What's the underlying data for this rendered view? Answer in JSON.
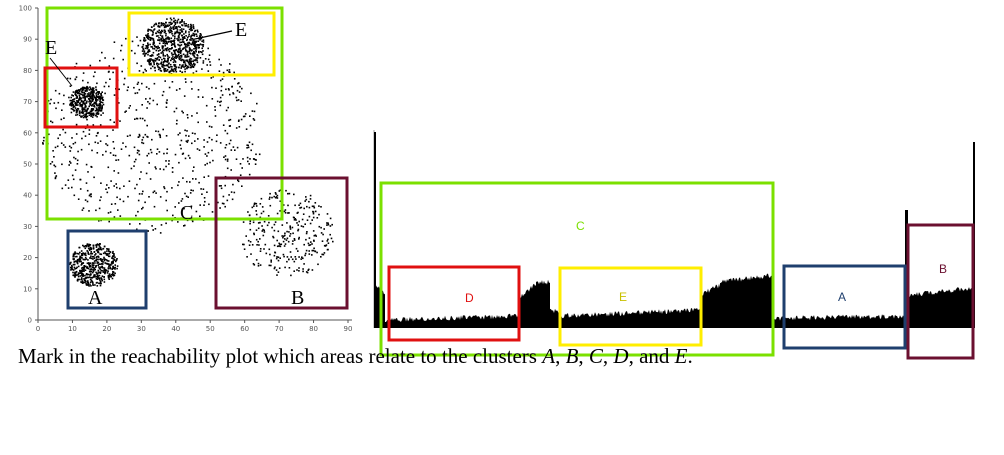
{
  "scatter": {
    "x_ticks": [
      "0",
      "10",
      "20",
      "30",
      "40",
      "50",
      "60",
      "70",
      "80",
      "90"
    ],
    "y_ticks": [
      "0",
      "10",
      "20",
      "30",
      "40",
      "50",
      "60",
      "70",
      "80",
      "90",
      "100"
    ],
    "xlim": [
      0,
      90
    ],
    "ylim": [
      0,
      100
    ],
    "clusters": [
      {
        "key": "A",
        "label": "A",
        "color": "#1f3f6e",
        "center": [
          16,
          18
        ],
        "radius": 7,
        "count": 500
      },
      {
        "key": "B",
        "label": "B",
        "color": "#6b1030",
        "center": [
          72,
          28
        ],
        "radius": 14,
        "count": 300
      },
      {
        "key": "C",
        "label": "C",
        "color": "#7be000",
        "center": [
          33,
          60
        ],
        "radius": 32,
        "count": 700
      },
      {
        "key": "D",
        "label": "D",
        "color": "#e01010",
        "center": [
          14,
          70
        ],
        "radius": 5,
        "count": 400
      },
      {
        "key": "E",
        "label": "E",
        "color": "#ffee00",
        "center": [
          39,
          88
        ],
        "radius": 9,
        "count": 700
      }
    ]
  },
  "reachability": {
    "boxes": [
      {
        "key": "C",
        "label": "C",
        "color": "#7be000"
      },
      {
        "key": "D",
        "label": "D",
        "color": "#e01010"
      },
      {
        "key": "E",
        "label": "E",
        "color": "#ffee00"
      },
      {
        "key": "A",
        "label": "A",
        "color": "#1f3f6e"
      },
      {
        "key": "B",
        "label": "B",
        "color": "#6b1030"
      }
    ]
  },
  "caption": {
    "text": "Mark in the reachability plot which areas relate to the clusters ",
    "a": "A",
    "b": "B",
    "c": "C",
    "d": "D",
    "e": "E",
    "sep": ", ",
    "and": ", and ",
    "end": "."
  }
}
